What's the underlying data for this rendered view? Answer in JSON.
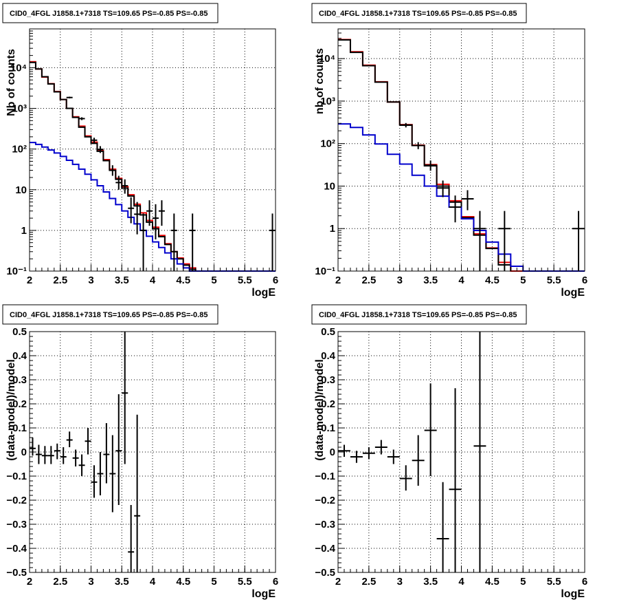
{
  "colors": {
    "data": "#000000",
    "total_model": "#ee0000",
    "component_model": "#0000cc",
    "grid": "#000000"
  },
  "chart_data": [
    {
      "type": "line",
      "title": "CID0_4FGL J1858.1+7318 TS=109.65 PS=-0.85 PS=-0.85",
      "xlabel": "logE",
      "ylabel": "Nb of counts",
      "xlim": [
        2,
        6
      ],
      "ylim": [
        0.1,
        90000
      ],
      "yscale": "log",
      "grid": true,
      "xticks": [
        "2",
        "2.5",
        "3",
        "3.5",
        "4",
        "4.5",
        "5",
        "5.5",
        "6"
      ],
      "yticks": [
        {
          "value": 0.1,
          "label": "10⁻¹"
        },
        {
          "value": 1,
          "label": "1"
        },
        {
          "value": 10,
          "label": "10"
        },
        {
          "value": 100,
          "label": "10²"
        },
        {
          "value": 1000,
          "label": "10³"
        },
        {
          "value": 10000,
          "label": "10⁴"
        }
      ],
      "series": [
        {
          "kind": "step",
          "color": "total_model",
          "edges": [
            2,
            2.1,
            2.2,
            2.3,
            2.4,
            2.5,
            2.6,
            2.7,
            2.8,
            2.9,
            3.0,
            3.1,
            3.2,
            3.3,
            3.4,
            3.5,
            3.6,
            3.7,
            3.8,
            3.9,
            4.0,
            4.1,
            4.2,
            4.3,
            4.4,
            4.5,
            4.6,
            4.7,
            4.8,
            4.9,
            5.0,
            5.1,
            5.2,
            5.3,
            5.4,
            5.5,
            5.6,
            5.7,
            5.8,
            5.9,
            6.0
          ],
          "values": [
            14000,
            9300,
            5900,
            4050,
            2600,
            1650,
            1000,
            620,
            365,
            210,
            148,
            92,
            55,
            32,
            19,
            12,
            7.5,
            4.4,
            2.7,
            1.75,
            1.2,
            0.75,
            0.47,
            0.3,
            0.21,
            0.15,
            0.12,
            0.1,
            0.1,
            0.1,
            0.1,
            0.1,
            0.1,
            0.1,
            0.1,
            0.1,
            0.1,
            0.1,
            0.1,
            0.1
          ]
        },
        {
          "kind": "step",
          "color": "data",
          "edges": [
            2,
            2.1,
            2.2,
            2.3,
            2.4,
            2.5,
            2.6,
            2.7,
            2.8,
            2.9,
            3.0,
            3.1,
            3.2,
            3.3,
            3.4,
            3.5,
            3.6,
            3.7,
            3.8,
            3.9,
            4.0,
            4.1,
            4.2,
            4.3,
            4.4,
            4.5,
            4.6,
            4.7,
            4.8,
            4.9
          ],
          "values": [
            13500,
            9300,
            6000,
            4000,
            2550,
            1650,
            1000,
            600,
            345,
            200,
            138,
            88,
            52,
            30,
            18,
            11,
            7,
            4,
            2.4,
            1.6,
            1.1,
            0.7,
            0.45,
            0.3,
            0.2,
            0.14,
            0.11,
            0.1,
            0.1,
            0.1
          ]
        },
        {
          "kind": "step",
          "color": "component_model",
          "edges": [
            2,
            2.1,
            2.2,
            2.3,
            2.4,
            2.5,
            2.6,
            2.7,
            2.8,
            2.9,
            3.0,
            3.1,
            3.2,
            3.3,
            3.4,
            3.5,
            3.6,
            3.7,
            3.8,
            3.9,
            4.0,
            4.1,
            4.2,
            4.3,
            4.4,
            4.5,
            4.6,
            4.7,
            4.8,
            4.9,
            5.0,
            5.1,
            5.2,
            5.3,
            5.4,
            5.5,
            5.6,
            5.7,
            5.8,
            5.9,
            6.0
          ],
          "values": [
            145,
            130,
            112,
            95,
            80,
            66,
            53,
            42,
            32,
            24,
            17.5,
            12.5,
            8.8,
            6.1,
            4.3,
            3.0,
            2.1,
            1.45,
            1.0,
            0.72,
            0.52,
            0.38,
            0.28,
            0.2,
            0.15,
            0.12,
            0.1,
            0.1,
            0.1,
            0.1,
            0.1,
            0.1,
            0.1,
            0.1,
            0.1,
            0.1,
            0.1,
            0.1,
            0.1,
            0.1
          ]
        },
        {
          "kind": "errorbars",
          "color": "data",
          "halfwidth": 0.05,
          "points": [
            {
              "x": 2.65,
              "y": 1850,
              "lo": 1760,
              "hi": 1940
            },
            {
              "x": 2.85,
              "y": 560,
              "lo": 515,
              "hi": 605
            },
            {
              "x": 3.05,
              "y": 165,
              "lo": 142,
              "hi": 190
            },
            {
              "x": 3.15,
              "y": 98,
              "lo": 80,
              "hi": 118
            },
            {
              "x": 3.35,
              "y": 30,
              "lo": 22,
              "hi": 40
            },
            {
              "x": 3.45,
              "y": 15,
              "lo": 10,
              "hi": 22
            },
            {
              "x": 3.55,
              "y": 12.5,
              "lo": 8,
              "hi": 18
            },
            {
              "x": 3.65,
              "y": 3.5,
              "lo": 1.5,
              "hi": 6.5
            },
            {
              "x": 3.75,
              "y": 2.5,
              "lo": 0.8,
              "hi": 5
            },
            {
              "x": 3.85,
              "y": 1.0,
              "lo": 0.1,
              "hi": 2.6
            },
            {
              "x": 3.95,
              "y": 3.0,
              "lo": 1.3,
              "hi": 5.5
            },
            {
              "x": 4.05,
              "y": 2.0,
              "lo": 0.6,
              "hi": 4.4
            },
            {
              "x": 4.15,
              "y": 3.0,
              "lo": 1.3,
              "hi": 5.5
            },
            {
              "x": 4.35,
              "y": 1.0,
              "lo": 0.1,
              "hi": 2.6
            },
            {
              "x": 4.65,
              "y": 1.0,
              "lo": 0.1,
              "hi": 2.6
            },
            {
              "x": 5.95,
              "y": 1.0,
              "lo": 0.1,
              "hi": 2.6
            }
          ]
        }
      ]
    },
    {
      "type": "line",
      "title": "CID0_4FGL J1858.1+7318 TS=109.65 PS=-0.85 PS=-0.85",
      "xlabel": "logE",
      "ylabel": "nb of counts",
      "xlim": [
        2,
        6
      ],
      "ylim": [
        0.1,
        50000
      ],
      "yscale": "log",
      "grid": true,
      "xticks": [
        "2",
        "2.5",
        "3",
        "3.5",
        "4",
        "4.5",
        "5",
        "5.5",
        "6"
      ],
      "yticks": [
        {
          "value": 0.1,
          "label": "10⁻¹"
        },
        {
          "value": 1,
          "label": "1"
        },
        {
          "value": 10,
          "label": "10"
        },
        {
          "value": 100,
          "label": "10²"
        },
        {
          "value": 1000,
          "label": "10³"
        },
        {
          "value": 10000,
          "label": "10⁴"
        }
      ],
      "series": [
        {
          "kind": "step",
          "color": "total_model",
          "edges": [
            2,
            2.2,
            2.4,
            2.6,
            2.8,
            3.0,
            3.2,
            3.4,
            3.6,
            3.8,
            4.0,
            4.2,
            4.4,
            4.6,
            4.8,
            5.0,
            5.2,
            5.4,
            5.6,
            5.8,
            6.0
          ],
          "values": [
            28000,
            14500,
            7000,
            2850,
            950,
            280,
            92,
            32,
            11,
            4.5,
            1.9,
            0.75,
            0.35,
            0.16,
            0.1,
            0.1,
            0.1,
            0.1,
            0.1,
            0.1
          ]
        },
        {
          "kind": "step",
          "color": "data",
          "edges": [
            2,
            2.2,
            2.4,
            2.6,
            2.8,
            3.0,
            3.2,
            3.4,
            3.6,
            3.8,
            4.0,
            4.2,
            4.4,
            4.6,
            4.8
          ],
          "values": [
            27500,
            14000,
            6800,
            2800,
            950,
            275,
            90,
            30,
            10,
            4.2,
            1.8,
            0.7,
            0.34,
            0.14,
            0.1
          ]
        },
        {
          "kind": "step",
          "color": "component_model",
          "edges": [
            2,
            2.2,
            2.4,
            2.6,
            2.8,
            3.0,
            3.2,
            3.4,
            3.6,
            3.8,
            4.0,
            4.2,
            4.4,
            4.6,
            4.8,
            5.0,
            5.2,
            5.4,
            5.6,
            5.8,
            6.0
          ],
          "values": [
            290,
            240,
            160,
            98,
            56,
            33,
            18,
            10,
            5.8,
            3.2,
            1.7,
            0.9,
            0.48,
            0.25,
            0.13,
            0.1,
            0.1,
            0.1,
            0.1,
            0.1
          ]
        },
        {
          "kind": "errorbars",
          "color": "data",
          "halfwidth": 0.1,
          "points": [
            {
              "x": 3.1,
              "y": 270,
              "lo": 240,
              "hi": 305
            },
            {
              "x": 3.3,
              "y": 90,
              "lo": 74,
              "hi": 108
            },
            {
              "x": 3.5,
              "y": 31,
              "lo": 23,
              "hi": 40
            },
            {
              "x": 3.7,
              "y": 9,
              "lo": 5.5,
              "hi": 13.5
            },
            {
              "x": 3.9,
              "y": 3.2,
              "lo": 1.4,
              "hi": 6
            },
            {
              "x": 4.1,
              "y": 5,
              "lo": 2.7,
              "hi": 8
            },
            {
              "x": 4.3,
              "y": 1.0,
              "lo": 0.1,
              "hi": 2.6
            },
            {
              "x": 4.7,
              "y": 1.0,
              "lo": 0.1,
              "hi": 2.6
            },
            {
              "x": 5.9,
              "y": 1.0,
              "lo": 0.1,
              "hi": 2.6
            }
          ]
        }
      ]
    },
    {
      "type": "scatter",
      "title": "CID0_4FGL J1858.1+7318 TS=109.65 PS=-0.85 PS=-0.85",
      "xlabel": "logE",
      "ylabel": "(data-model)/model",
      "xlim": [
        2,
        6
      ],
      "ylim": [
        -0.5,
        0.5
      ],
      "yscale": "linear",
      "grid": true,
      "xticks": [
        "2",
        "2.5",
        "3",
        "3.5",
        "4",
        "4.5",
        "5",
        "5.5",
        "6"
      ],
      "yticks": [
        {
          "value": -0.5,
          "label": "−0.5"
        },
        {
          "value": -0.4,
          "label": "−0.4"
        },
        {
          "value": -0.3,
          "label": "−0.3"
        },
        {
          "value": -0.2,
          "label": "−0.2"
        },
        {
          "value": -0.1,
          "label": "−0.1"
        },
        {
          "value": 0,
          "label": "0"
        },
        {
          "value": 0.1,
          "label": "0.1"
        },
        {
          "value": 0.2,
          "label": "0.2"
        },
        {
          "value": 0.3,
          "label": "0.3"
        },
        {
          "value": 0.4,
          "label": "0.4"
        },
        {
          "value": 0.5,
          "label": "0.5"
        }
      ],
      "series": [
        {
          "kind": "errorbars",
          "color": "data",
          "halfwidth": 0.05,
          "points": [
            {
              "x": 2.05,
              "y": 0.015,
              "lo": -0.015,
              "hi": 0.06
            },
            {
              "x": 2.15,
              "y": -0.01,
              "lo": -0.05,
              "hi": 0.03
            },
            {
              "x": 2.25,
              "y": -0.015,
              "lo": -0.05,
              "hi": 0.025
            },
            {
              "x": 2.35,
              "y": -0.015,
              "lo": -0.05,
              "hi": 0.025
            },
            {
              "x": 2.45,
              "y": 0.005,
              "lo": -0.03,
              "hi": 0.035
            },
            {
              "x": 2.55,
              "y": -0.02,
              "lo": -0.05,
              "hi": 0.02
            },
            {
              "x": 2.65,
              "y": 0.05,
              "lo": 0.02,
              "hi": 0.085
            },
            {
              "x": 2.75,
              "y": -0.025,
              "lo": -0.06,
              "hi": 0.01
            },
            {
              "x": 2.85,
              "y": -0.055,
              "lo": -0.1,
              "hi": -0.01
            },
            {
              "x": 2.95,
              "y": 0.045,
              "lo": -0.01,
              "hi": 0.1
            },
            {
              "x": 3.05,
              "y": -0.125,
              "lo": -0.19,
              "hi": -0.055
            },
            {
              "x": 3.15,
              "y": -0.09,
              "lo": -0.18,
              "hi": 0.0
            },
            {
              "x": 3.25,
              "y": -0.01,
              "lo": -0.13,
              "hi": 0.12
            },
            {
              "x": 3.35,
              "y": -0.09,
              "lo": -0.25,
              "hi": 0.07
            },
            {
              "x": 3.45,
              "y": 0.005,
              "lo": -0.22,
              "hi": 0.24
            },
            {
              "x": 3.55,
              "y": 0.245,
              "lo": -0.05,
              "hi": 0.5
            },
            {
              "x": 3.65,
              "y": -0.415,
              "lo": -0.5,
              "hi": -0.22
            },
            {
              "x": 3.75,
              "y": -0.265,
              "lo": -0.5,
              "hi": 0.155
            }
          ]
        }
      ]
    },
    {
      "type": "scatter",
      "title": "CID0_4FGL J1858.1+7318 TS=109.65 PS=-0.85 PS=-0.85",
      "xlabel": "logE",
      "ylabel": "(data-model)/model",
      "xlim": [
        2,
        6
      ],
      "ylim": [
        -0.5,
        0.5
      ],
      "yscale": "linear",
      "grid": true,
      "xticks": [
        "2",
        "2.5",
        "3",
        "3.5",
        "4",
        "4.5",
        "5",
        "5.5",
        "6"
      ],
      "yticks": [
        {
          "value": -0.5,
          "label": "−0.5"
        },
        {
          "value": -0.4,
          "label": "−0.4"
        },
        {
          "value": -0.3,
          "label": "−0.3"
        },
        {
          "value": -0.2,
          "label": "−0.2"
        },
        {
          "value": -0.1,
          "label": "−0.1"
        },
        {
          "value": 0,
          "label": "0"
        },
        {
          "value": 0.1,
          "label": "0.1"
        },
        {
          "value": 0.2,
          "label": "0.2"
        },
        {
          "value": 0.3,
          "label": "0.3"
        },
        {
          "value": 0.4,
          "label": "0.4"
        },
        {
          "value": 0.5,
          "label": "0.5"
        }
      ],
      "series": [
        {
          "kind": "errorbars",
          "color": "data",
          "halfwidth": 0.1,
          "points": [
            {
              "x": 2.1,
              "y": 0.005,
              "lo": -0.02,
              "hi": 0.03
            },
            {
              "x": 2.3,
              "y": -0.02,
              "lo": -0.045,
              "hi": 0.005
            },
            {
              "x": 2.5,
              "y": -0.005,
              "lo": -0.03,
              "hi": 0.02
            },
            {
              "x": 2.7,
              "y": 0.02,
              "lo": -0.01,
              "hi": 0.05
            },
            {
              "x": 2.9,
              "y": -0.02,
              "lo": -0.05,
              "hi": 0.01
            },
            {
              "x": 3.1,
              "y": -0.11,
              "lo": -0.16,
              "hi": -0.055
            },
            {
              "x": 3.3,
              "y": -0.035,
              "lo": -0.14,
              "hi": 0.07
            },
            {
              "x": 3.5,
              "y": 0.09,
              "lo": -0.1,
              "hi": 0.285
            },
            {
              "x": 3.7,
              "y": -0.36,
              "lo": -0.5,
              "hi": -0.125
            },
            {
              "x": 3.9,
              "y": -0.155,
              "lo": -0.5,
              "hi": 0.265
            },
            {
              "x": 4.3,
              "y": 0.025,
              "lo": -0.5,
              "hi": 0.5
            }
          ]
        }
      ]
    }
  ]
}
